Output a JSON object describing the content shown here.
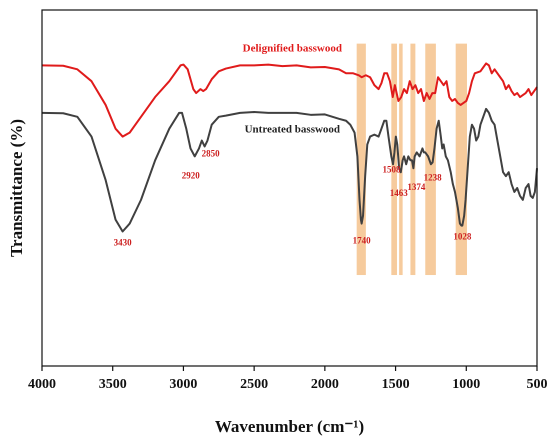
{
  "chart_data": {
    "type": "line",
    "xlabel": "Wavenumber (cm⁻¹)",
    "ylabel": "Transmittance (%)",
    "xlim": [
      4000,
      500
    ],
    "x_reversed": true,
    "y_ticks_shown": false,
    "grid": false,
    "x_ticks": [
      4000,
      3500,
      3000,
      2500,
      2000,
      1500,
      1000,
      500
    ],
    "highlight_bands": [
      {
        "from": 1775,
        "to": 1710
      },
      {
        "from": 1530,
        "to": 1490
      },
      {
        "from": 1475,
        "to": 1450
      },
      {
        "from": 1395,
        "to": 1360
      },
      {
        "from": 1290,
        "to": 1215
      },
      {
        "from": 1075,
        "to": 995
      }
    ],
    "peak_labels": [
      {
        "text": "3430",
        "x": 3430
      },
      {
        "text": "2920",
        "x": 2920
      },
      {
        "text": "2850",
        "x": 2850
      },
      {
        "text": "1740",
        "x": 1740
      },
      {
        "text": "1508",
        "x": 1508
      },
      {
        "text": "1463",
        "x": 1463
      },
      {
        "text": "1374",
        "x": 1374
      },
      {
        "text": "1238",
        "x": 1238
      },
      {
        "text": "1028",
        "x": 1028
      }
    ],
    "series": [
      {
        "name": "Delignified basswood",
        "color": "#e01b1b",
        "points": [
          [
            4000,
            76
          ],
          [
            3850,
            75.9
          ],
          [
            3750,
            75
          ],
          [
            3650,
            72
          ],
          [
            3550,
            66
          ],
          [
            3480,
            60
          ],
          [
            3430,
            58
          ],
          [
            3380,
            59
          ],
          [
            3300,
            63
          ],
          [
            3200,
            68
          ],
          [
            3100,
            72
          ],
          [
            3020,
            76
          ],
          [
            3000,
            76.2
          ],
          [
            2970,
            75
          ],
          [
            2930,
            70
          ],
          [
            2910,
            69
          ],
          [
            2880,
            70
          ],
          [
            2860,
            69.5
          ],
          [
            2840,
            70
          ],
          [
            2800,
            72.5
          ],
          [
            2750,
            74.5
          ],
          [
            2700,
            75.2
          ],
          [
            2600,
            76
          ],
          [
            2500,
            76
          ],
          [
            2400,
            76.2
          ],
          [
            2300,
            75.8
          ],
          [
            2200,
            76
          ],
          [
            2100,
            75.5
          ],
          [
            2000,
            75.6
          ],
          [
            1900,
            75
          ],
          [
            1850,
            74
          ],
          [
            1800,
            74
          ],
          [
            1760,
            73.5
          ],
          [
            1740,
            73
          ],
          [
            1710,
            73.5
          ],
          [
            1680,
            73
          ],
          [
            1650,
            71
          ],
          [
            1620,
            70
          ],
          [
            1600,
            71.5
          ],
          [
            1580,
            74
          ],
          [
            1560,
            74
          ],
          [
            1540,
            72
          ],
          [
            1520,
            68
          ],
          [
            1505,
            71
          ],
          [
            1480,
            67
          ],
          [
            1460,
            68
          ],
          [
            1440,
            70
          ],
          [
            1420,
            69
          ],
          [
            1400,
            72
          ],
          [
            1380,
            70
          ],
          [
            1360,
            71
          ],
          [
            1340,
            69
          ],
          [
            1320,
            70
          ],
          [
            1300,
            67
          ],
          [
            1280,
            69
          ],
          [
            1260,
            67.5
          ],
          [
            1240,
            69
          ],
          [
            1220,
            69
          ],
          [
            1200,
            73
          ],
          [
            1180,
            72
          ],
          [
            1160,
            71
          ],
          [
            1140,
            72
          ],
          [
            1120,
            68
          ],
          [
            1100,
            67
          ],
          [
            1080,
            67.5
          ],
          [
            1060,
            66.5
          ],
          [
            1040,
            66
          ],
          [
            1020,
            66.5
          ],
          [
            1000,
            67
          ],
          [
            980,
            69
          ],
          [
            960,
            72
          ],
          [
            940,
            74
          ],
          [
            900,
            74.5
          ],
          [
            880,
            75.5
          ],
          [
            860,
            76.5
          ],
          [
            840,
            76
          ],
          [
            820,
            74
          ],
          [
            800,
            75
          ],
          [
            780,
            74
          ],
          [
            760,
            73
          ],
          [
            740,
            72
          ],
          [
            720,
            70
          ],
          [
            700,
            71
          ],
          [
            680,
            69.5
          ],
          [
            660,
            68.5
          ],
          [
            640,
            69
          ],
          [
            620,
            68
          ],
          [
            600,
            68.5
          ],
          [
            580,
            69
          ],
          [
            560,
            70
          ],
          [
            540,
            68.5
          ],
          [
            520,
            69.5
          ],
          [
            500,
            70.5
          ]
        ]
      },
      {
        "name": "Untreated basswood",
        "color": "#404040",
        "points": [
          [
            4000,
            64
          ],
          [
            3850,
            63.9
          ],
          [
            3750,
            63
          ],
          [
            3650,
            58
          ],
          [
            3550,
            47
          ],
          [
            3480,
            37
          ],
          [
            3430,
            34
          ],
          [
            3380,
            36
          ],
          [
            3300,
            42
          ],
          [
            3200,
            52
          ],
          [
            3100,
            60
          ],
          [
            3030,
            64
          ],
          [
            3010,
            64
          ],
          [
            2980,
            60
          ],
          [
            2950,
            55
          ],
          [
            2920,
            53
          ],
          [
            2890,
            55
          ],
          [
            2870,
            57
          ],
          [
            2850,
            55.5
          ],
          [
            2830,
            57
          ],
          [
            2800,
            61
          ],
          [
            2750,
            63
          ],
          [
            2700,
            63.3
          ],
          [
            2600,
            64
          ],
          [
            2500,
            64.2
          ],
          [
            2400,
            64
          ],
          [
            2300,
            64
          ],
          [
            2200,
            64
          ],
          [
            2100,
            63.5
          ],
          [
            2000,
            63.6
          ],
          [
            1900,
            62.5
          ],
          [
            1850,
            62
          ],
          [
            1820,
            61
          ],
          [
            1790,
            59
          ],
          [
            1770,
            53
          ],
          [
            1755,
            42
          ],
          [
            1745,
            37
          ],
          [
            1740,
            36
          ],
          [
            1730,
            38
          ],
          [
            1715,
            48
          ],
          [
            1700,
            56
          ],
          [
            1680,
            58
          ],
          [
            1650,
            58.5
          ],
          [
            1620,
            58
          ],
          [
            1600,
            60
          ],
          [
            1580,
            62
          ],
          [
            1565,
            62
          ],
          [
            1550,
            58
          ],
          [
            1530,
            53
          ],
          [
            1518,
            51
          ],
          [
            1508,
            54
          ],
          [
            1498,
            58
          ],
          [
            1488,
            56
          ],
          [
            1475,
            50
          ],
          [
            1463,
            49
          ],
          [
            1450,
            52
          ],
          [
            1440,
            53
          ],
          [
            1425,
            51
          ],
          [
            1410,
            53
          ],
          [
            1395,
            52
          ],
          [
            1384,
            52
          ],
          [
            1374,
            50
          ],
          [
            1365,
            53
          ],
          [
            1350,
            54
          ],
          [
            1330,
            53
          ],
          [
            1310,
            55
          ],
          [
            1300,
            54
          ],
          [
            1290,
            54
          ],
          [
            1270,
            53
          ],
          [
            1250,
            51
          ],
          [
            1238,
            51.5
          ],
          [
            1225,
            55
          ],
          [
            1210,
            60
          ],
          [
            1195,
            62
          ],
          [
            1180,
            58
          ],
          [
            1170,
            55
          ],
          [
            1160,
            56
          ],
          [
            1145,
            53
          ],
          [
            1130,
            52
          ],
          [
            1110,
            49
          ],
          [
            1095,
            46
          ],
          [
            1080,
            44
          ],
          [
            1060,
            40
          ],
          [
            1045,
            36
          ],
          [
            1035,
            35.5
          ],
          [
            1028,
            35.5
          ],
          [
            1015,
            38
          ],
          [
            1005,
            42
          ],
          [
            990,
            50
          ],
          [
            975,
            58
          ],
          [
            960,
            61
          ],
          [
            945,
            60
          ],
          [
            930,
            57
          ],
          [
            915,
            58
          ],
          [
            900,
            61
          ],
          [
            880,
            63
          ],
          [
            860,
            65
          ],
          [
            840,
            64
          ],
          [
            820,
            62
          ],
          [
            800,
            61
          ],
          [
            780,
            57
          ],
          [
            760,
            53
          ],
          [
            740,
            49
          ],
          [
            720,
            48
          ],
          [
            700,
            49
          ],
          [
            680,
            46
          ],
          [
            660,
            44
          ],
          [
            640,
            45
          ],
          [
            620,
            43
          ],
          [
            600,
            42
          ],
          [
            580,
            45
          ],
          [
            560,
            46
          ],
          [
            545,
            43
          ],
          [
            530,
            42.5
          ],
          [
            515,
            44
          ],
          [
            500,
            50
          ]
        ]
      }
    ],
    "label_positions": {
      "Delignified basswood": [
        2230,
        79.5
      ],
      "Untreated basswood": [
        2230,
        59
      ]
    }
  }
}
